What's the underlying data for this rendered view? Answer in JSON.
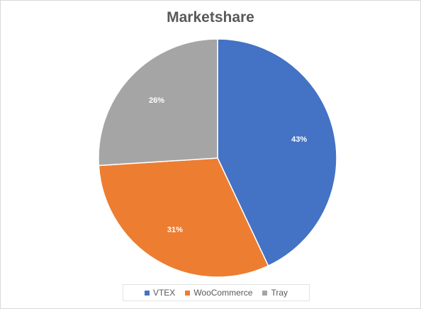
{
  "chart_data": {
    "type": "pie",
    "title": "Marketshare",
    "categories": [
      "VTEX",
      "WooCommerce",
      "Tray"
    ],
    "values": [
      43,
      31,
      26
    ],
    "data_labels": [
      "43%",
      "31%",
      "26%"
    ],
    "colors": [
      "#4472C4",
      "#ED7D31",
      "#A5A5A5"
    ],
    "label_color": "#ffffff",
    "legend_position": "bottom",
    "start_angle_deg": 0,
    "direction": "clockwise"
  }
}
